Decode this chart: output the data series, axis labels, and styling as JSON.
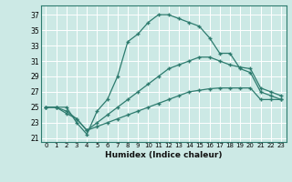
{
  "xlabel": "Humidex (Indice chaleur)",
  "xlim": [
    -0.5,
    23.5
  ],
  "ylim": [
    20.5,
    38.2
  ],
  "xticks": [
    0,
    1,
    2,
    3,
    4,
    5,
    6,
    7,
    8,
    9,
    10,
    11,
    12,
    13,
    14,
    15,
    16,
    17,
    18,
    19,
    20,
    21,
    22,
    23
  ],
  "yticks": [
    21,
    23,
    25,
    27,
    29,
    31,
    33,
    35,
    37
  ],
  "bg_color": "#cce9e5",
  "line_color": "#2d7b6e",
  "grid_color": "#ffffff",
  "line1_x": [
    0,
    1,
    2,
    3,
    4,
    5,
    6,
    7,
    8,
    9,
    10,
    11,
    12,
    13,
    14,
    15,
    16,
    17,
    18,
    19,
    20,
    21,
    22,
    23
  ],
  "line1_y": [
    25,
    25,
    25,
    23,
    21.5,
    24.5,
    26,
    29,
    33.5,
    34.5,
    36,
    37,
    37,
    36.5,
    36,
    35.5,
    34,
    32,
    32,
    30,
    29.5,
    27,
    26.5,
    26
  ],
  "line2_x": [
    0,
    1,
    2,
    3,
    4,
    5,
    6,
    7,
    8,
    9,
    10,
    11,
    12,
    13,
    14,
    15,
    16,
    17,
    18,
    19,
    20,
    21,
    22,
    23
  ],
  "line2_y": [
    25,
    25,
    24.5,
    23.5,
    22,
    23,
    24,
    25,
    26,
    27,
    28,
    29,
    30,
    30.5,
    31,
    31.5,
    31.5,
    31,
    30.5,
    30.2,
    30,
    27.5,
    27,
    26.5
  ],
  "line3_x": [
    0,
    1,
    2,
    3,
    4,
    5,
    6,
    7,
    8,
    9,
    10,
    11,
    12,
    13,
    14,
    15,
    16,
    17,
    18,
    19,
    20,
    21,
    22,
    23
  ],
  "line3_y": [
    25,
    25,
    24.2,
    23.5,
    22,
    22.5,
    23,
    23.5,
    24,
    24.5,
    25,
    25.5,
    26,
    26.5,
    27,
    27.2,
    27.4,
    27.5,
    27.5,
    27.5,
    27.5,
    26,
    26,
    26
  ]
}
